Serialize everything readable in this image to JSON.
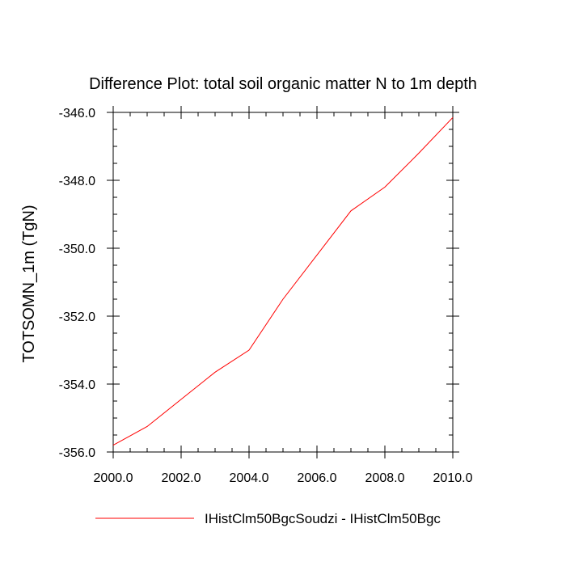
{
  "chart_data": {
    "type": "line",
    "title": "Difference Plot: total soil organic matter N to 1m depth",
    "xlabel": "",
    "ylabel": "TOTSOMN_1m  (TgN)",
    "xlim": [
      2000,
      2010
    ],
    "ylim": [
      -356,
      -346
    ],
    "x_ticks": [
      2000,
      2002,
      2004,
      2006,
      2008,
      2010
    ],
    "x_tick_labels": [
      "2000.0",
      "2002.0",
      "2004.0",
      "2006.0",
      "2008.0",
      "2010.0"
    ],
    "y_ticks": [
      -356,
      -354,
      -352,
      -350,
      -348,
      -346
    ],
    "y_tick_labels": [
      "-356.0",
      "-354.0",
      "-352.0",
      "-350.0",
      "-348.0",
      "-346.0"
    ],
    "grid": false,
    "legend_position": "bottom",
    "series": [
      {
        "name": "IHistClm50BgcSoudzi - IHistClm50Bgc",
        "color": "#ff0000",
        "x": [
          2000,
          2001,
          2002,
          2003,
          2004,
          2005,
          2006,
          2007,
          2008,
          2009,
          2010
        ],
        "y": [
          -355.8,
          -355.25,
          -354.45,
          -353.65,
          -353.0,
          -351.5,
          -350.2,
          -348.9,
          -348.2,
          -347.2,
          -346.15
        ]
      }
    ]
  }
}
